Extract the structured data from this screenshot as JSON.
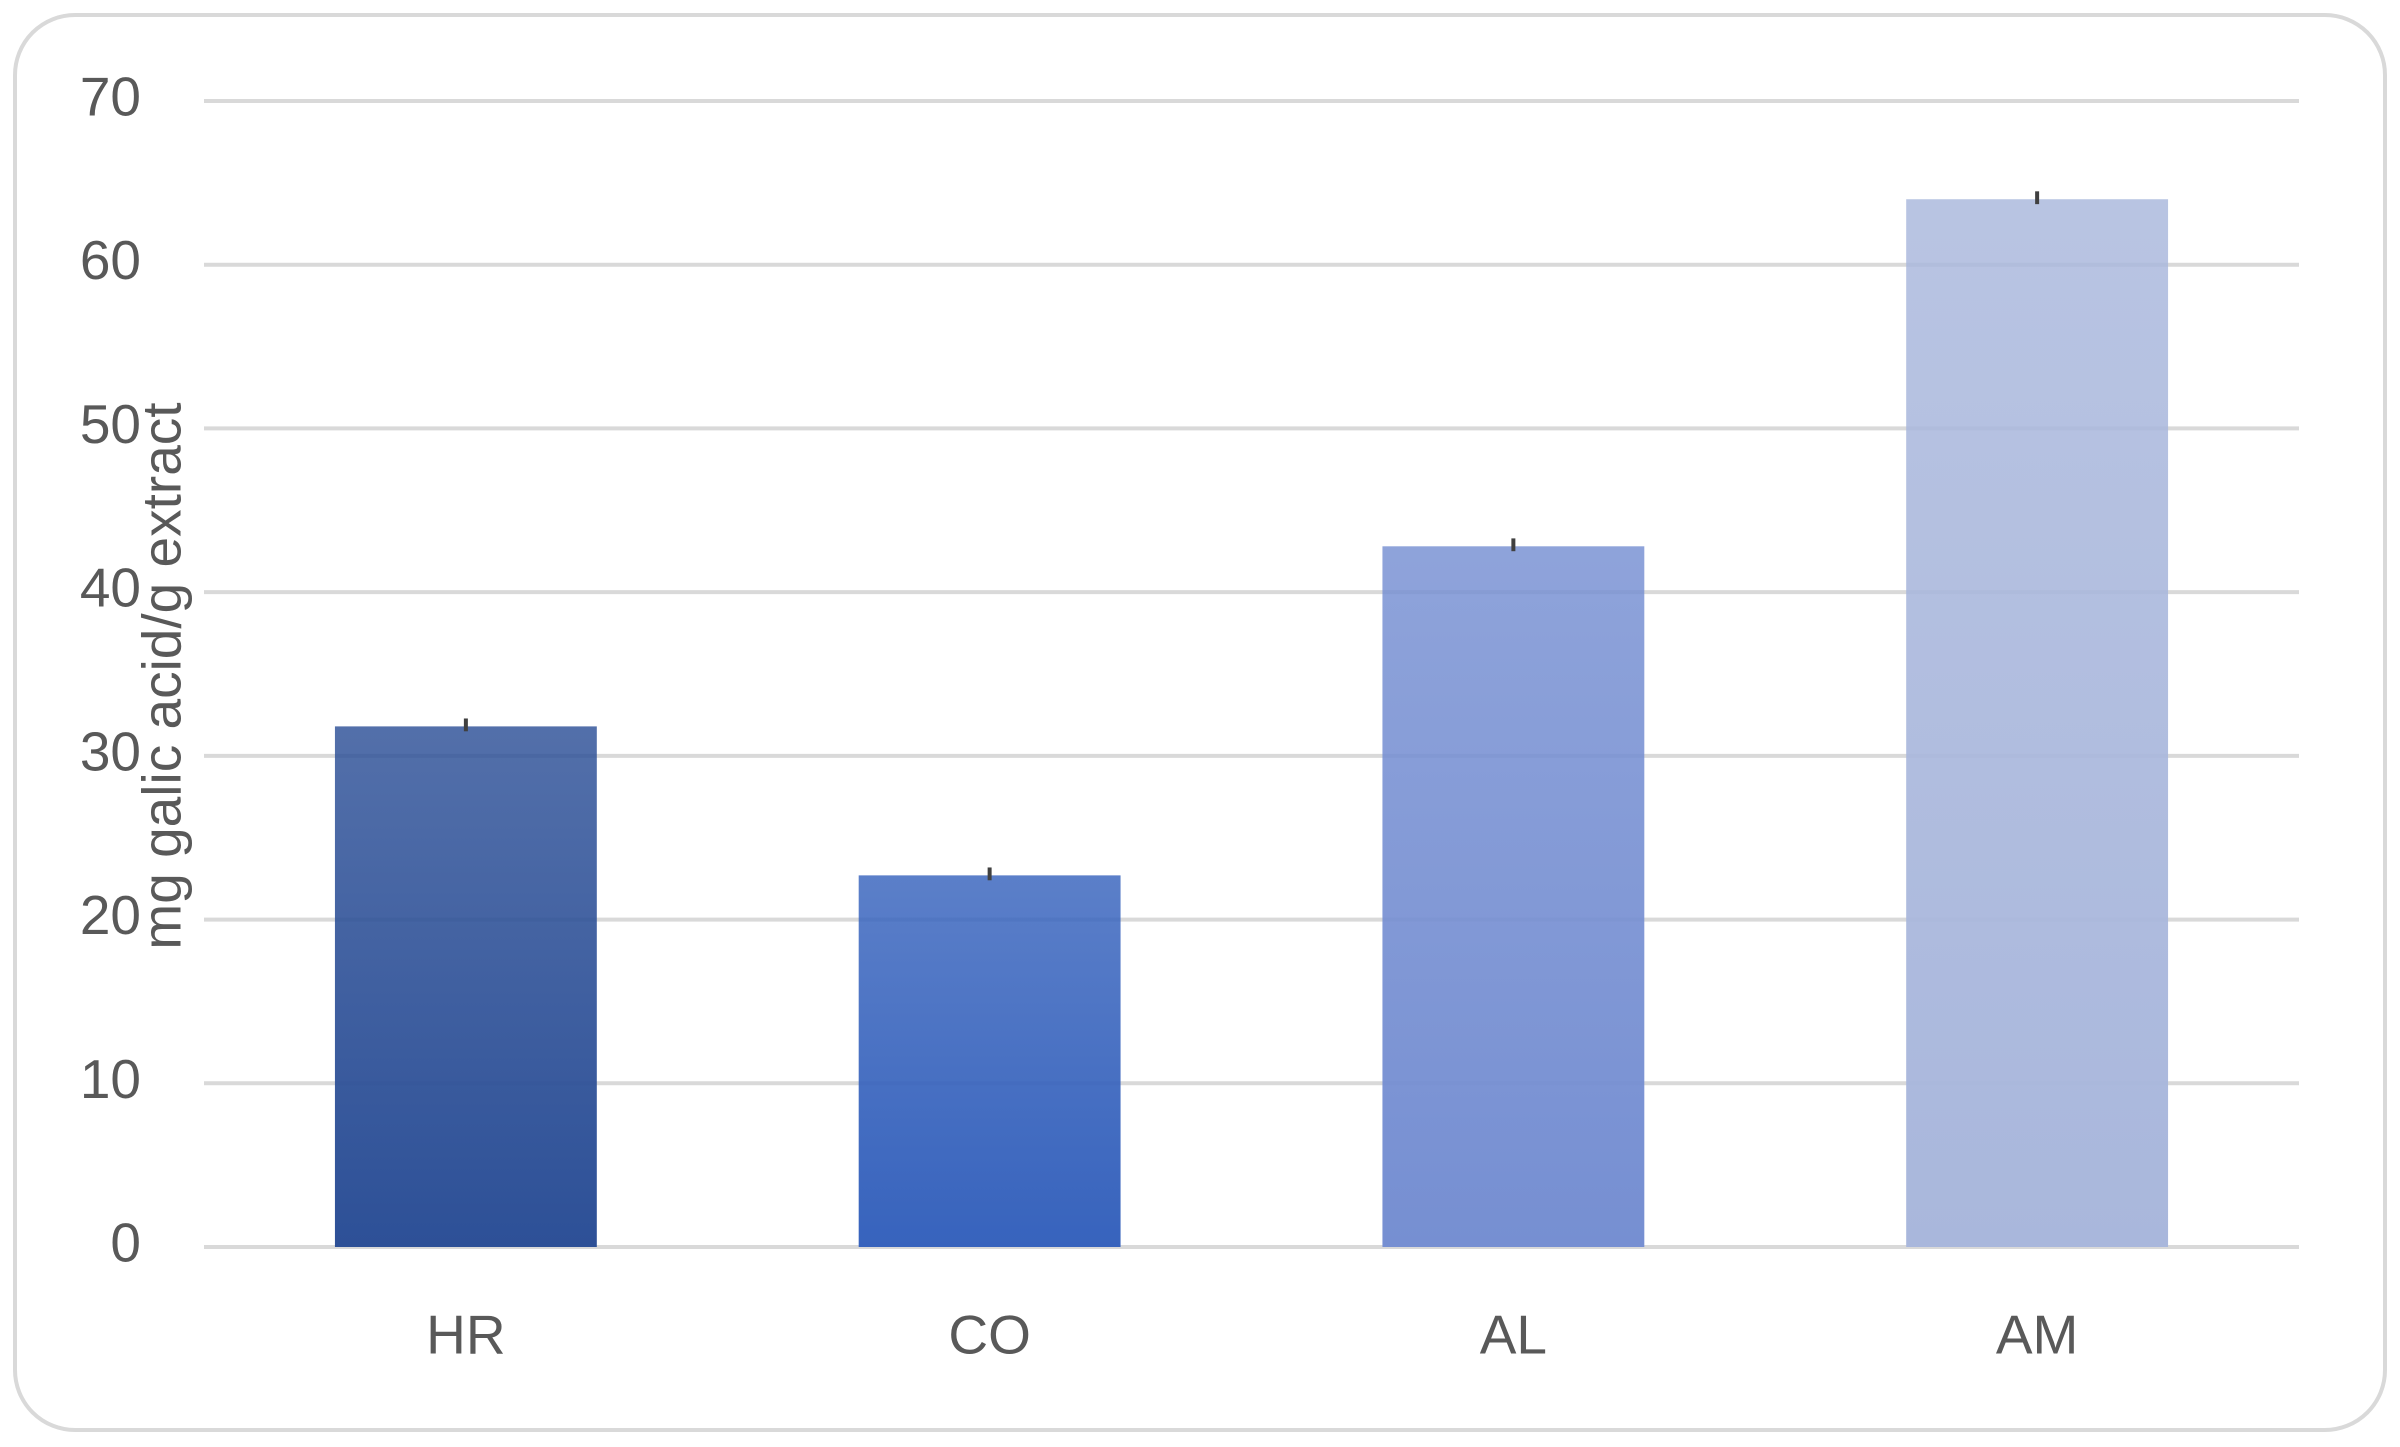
{
  "chart_data": {
    "type": "bar",
    "y_label": "mg galic acid/g extract",
    "categories": [
      "HR",
      "CO",
      "AL",
      "AM"
    ],
    "values": [
      31.8,
      22.7,
      42.8,
      64
    ],
    "errors": [
      0.3,
      0.3,
      0.3,
      0.3
    ],
    "colors": [
      "#2d5097",
      "#3763bd",
      "#768fd2",
      "#a9b7dc"
    ],
    "error_color": "#404040",
    "ylim": [
      0,
      70
    ],
    "yticks": [
      0,
      10,
      20,
      30,
      40,
      50,
      60,
      70
    ],
    "grid": true
  }
}
